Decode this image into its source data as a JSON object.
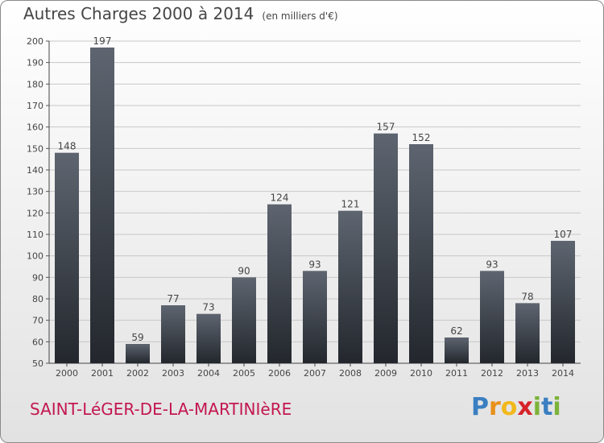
{
  "chart_data": {
    "type": "bar",
    "title": "Autres Charges 2000 à 2014",
    "subtitle": "(en milliers d'€)",
    "categories": [
      "2000",
      "2001",
      "2002",
      "2003",
      "2004",
      "2005",
      "2006",
      "2007",
      "2008",
      "2009",
      "2010",
      "2011",
      "2012",
      "2013",
      "2014"
    ],
    "values": [
      148,
      197,
      59,
      77,
      73,
      90,
      124,
      93,
      121,
      157,
      152,
      62,
      93,
      78,
      107
    ],
    "ylim": [
      50,
      200
    ],
    "yticks": [
      50,
      60,
      70,
      80,
      90,
      100,
      110,
      120,
      130,
      140,
      150,
      160,
      170,
      180,
      190,
      200
    ],
    "grid": true,
    "xlabel": "",
    "ylabel": ""
  },
  "place_name": "SAINT-LéGER-DE-LA-MARTINIèRE",
  "brand": {
    "letters": [
      "P",
      "r",
      "o",
      "x",
      "i",
      "t",
      "i"
    ],
    "colors": [
      "#3a7fc1",
      "#e8901a",
      "#f2b81c",
      "#d6232a",
      "#7cb33a",
      "#3a7fc1",
      "#7cb33a"
    ]
  },
  "colors": {
    "bar_top": "#5e6570",
    "bar_bottom": "#23272d",
    "grid": "#c8c8c8",
    "text": "#454545"
  }
}
